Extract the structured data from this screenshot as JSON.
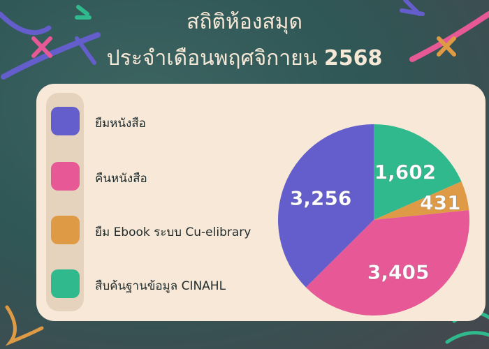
{
  "title": {
    "line1": "สถิติห้องสมุด",
    "line2": "ประจำเดือนพฤศจิกายน",
    "year": "2568"
  },
  "chart_data": {
    "type": "pie",
    "title": "สถิติห้องสมุด ประจำเดือนพฤศจิกายน 2568",
    "legend_position": "left",
    "slices": [
      {
        "label": "สืบค้นฐานข้อมูล CINAHL",
        "value": 1602,
        "display": "1,602",
        "color": "#2fb98c"
      },
      {
        "label": "ยืม Ebook ระบบ Cu-elibrary",
        "value": 431,
        "display": "431",
        "color": "#de9a45"
      },
      {
        "label": "คืนหนังสือ",
        "value": 3405,
        "display": "3,405",
        "color": "#e65896"
      },
      {
        "label": "ยืมหนังสือ",
        "value": 3256,
        "display": "3,256",
        "color": "#635ecb"
      }
    ]
  },
  "legend": [
    {
      "label": "ยืมหนังสือ",
      "color": "#635ecb"
    },
    {
      "label": "คืนหนังสือ",
      "color": "#e65896"
    },
    {
      "label": "ยืม Ebook ระบบ Cu-elibrary",
      "color": "#de9a45"
    },
    {
      "label": "สืบค้นฐานข้อมูล CINAHL",
      "color": "#2fb98c"
    }
  ]
}
